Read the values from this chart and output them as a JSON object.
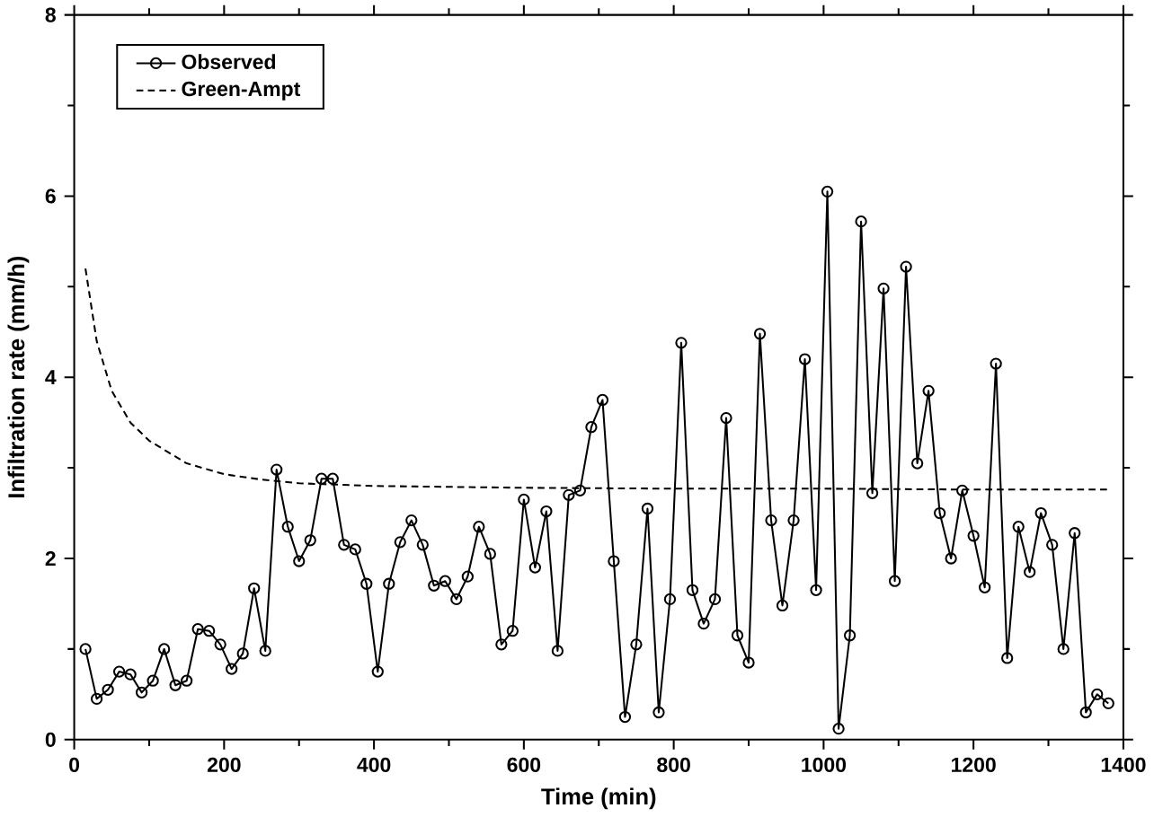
{
  "chart_data": {
    "type": "line",
    "xlabel": "Time (min)",
    "ylabel": "Infiltration rate (mm/h)",
    "xlim": [
      0,
      1400
    ],
    "xticks": [
      0,
      200,
      400,
      600,
      800,
      1000,
      1200,
      1400
    ],
    "ylim": [
      0,
      8
    ],
    "yticks": [
      0,
      2,
      4,
      6,
      8
    ],
    "grid": false,
    "legend": "top left",
    "series": [
      {
        "name": "Observed",
        "color": "#000000",
        "marker": "circle",
        "line_style": "solid",
        "x": [
          15,
          30,
          45,
          60,
          75,
          90,
          105,
          120,
          135,
          150,
          165,
          180,
          195,
          210,
          225,
          240,
          255,
          270,
          285,
          300,
          315,
          330,
          345,
          360,
          375,
          390,
          405,
          420,
          435,
          450,
          465,
          480,
          495,
          510,
          525,
          540,
          555,
          570,
          585,
          600,
          615,
          630,
          645,
          660,
          675,
          690,
          705,
          720,
          735,
          750,
          765,
          780,
          795,
          810,
          825,
          840,
          855,
          870,
          885,
          900,
          915,
          930,
          945,
          960,
          975,
          990,
          1005,
          1020,
          1035,
          1050,
          1065,
          1080,
          1095,
          1110,
          1125,
          1140,
          1155,
          1170,
          1185,
          1200,
          1215,
          1230,
          1245,
          1260,
          1275,
          1290,
          1305,
          1320,
          1335,
          1350,
          1365,
          1380
        ],
        "values": [
          1.0,
          0.45,
          0.55,
          0.75,
          0.72,
          0.52,
          0.65,
          1.0,
          0.6,
          0.65,
          1.22,
          1.2,
          1.05,
          0.78,
          0.95,
          1.67,
          0.98,
          2.98,
          2.35,
          1.97,
          2.2,
          2.88,
          2.88,
          2.15,
          2.1,
          1.72,
          0.75,
          1.72,
          2.18,
          2.42,
          2.15,
          1.7,
          1.75,
          1.55,
          1.8,
          2.35,
          2.05,
          1.05,
          1.2,
          2.65,
          1.9,
          2.52,
          0.98,
          2.7,
          2.75,
          3.45,
          3.75,
          1.97,
          0.25,
          1.05,
          2.55,
          0.3,
          1.55,
          4.38,
          1.65,
          1.28,
          1.55,
          3.55,
          1.15,
          0.85,
          4.48,
          2.42,
          1.48,
          2.42,
          4.2,
          1.65,
          6.05,
          0.12,
          1.15,
          5.72,
          2.72,
          4.98,
          1.75,
          5.22,
          3.05,
          3.85,
          2.5,
          2.0,
          2.75,
          2.25,
          1.68,
          4.15,
          0.9,
          2.35,
          1.85,
          2.5,
          2.15,
          1.0,
          2.28,
          0.3,
          0.5,
          0.4
        ]
      },
      {
        "name": "Green-Ampt",
        "color": "#000000",
        "marker": "none",
        "line_style": "dashed",
        "x": [
          15,
          30,
          50,
          75,
          100,
          150,
          200,
          250,
          300,
          400,
          600,
          800,
          1000,
          1200,
          1380
        ],
        "values": [
          5.2,
          4.4,
          3.85,
          3.5,
          3.3,
          3.05,
          2.93,
          2.87,
          2.83,
          2.8,
          2.78,
          2.77,
          2.77,
          2.76,
          2.76
        ]
      }
    ]
  }
}
